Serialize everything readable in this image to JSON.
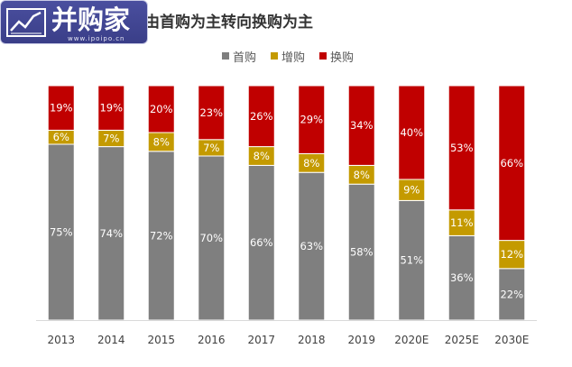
{
  "logo": {
    "name": "并购家",
    "url": "www.ipoipo.cn",
    "icon": "line-chart-icon",
    "color": "#3f4494"
  },
  "chart_data": {
    "type": "bar",
    "stacked": true,
    "title": "由首购为主转向换购为主",
    "xlabel": "",
    "ylabel": "",
    "categories": [
      "2013",
      "2014",
      "2015",
      "2016",
      "2017",
      "2018",
      "2019",
      "2020E",
      "2025E",
      "2030E"
    ],
    "series": [
      {
        "name": "首购",
        "color": "#7f7f7f",
        "values": [
          75,
          74,
          72,
          70,
          66,
          63,
          58,
          51,
          36,
          22
        ]
      },
      {
        "name": "增购",
        "color": "#c49a00",
        "values": [
          6,
          7,
          8,
          7,
          8,
          8,
          8,
          9,
          11,
          12
        ]
      },
      {
        "name": "换购",
        "color": "#c00000",
        "values": [
          19,
          19,
          20,
          23,
          26,
          29,
          34,
          40,
          53,
          66
        ]
      }
    ],
    "value_suffix": "%",
    "ylim": [
      0,
      100
    ],
    "grid": false,
    "legend": "top"
  }
}
